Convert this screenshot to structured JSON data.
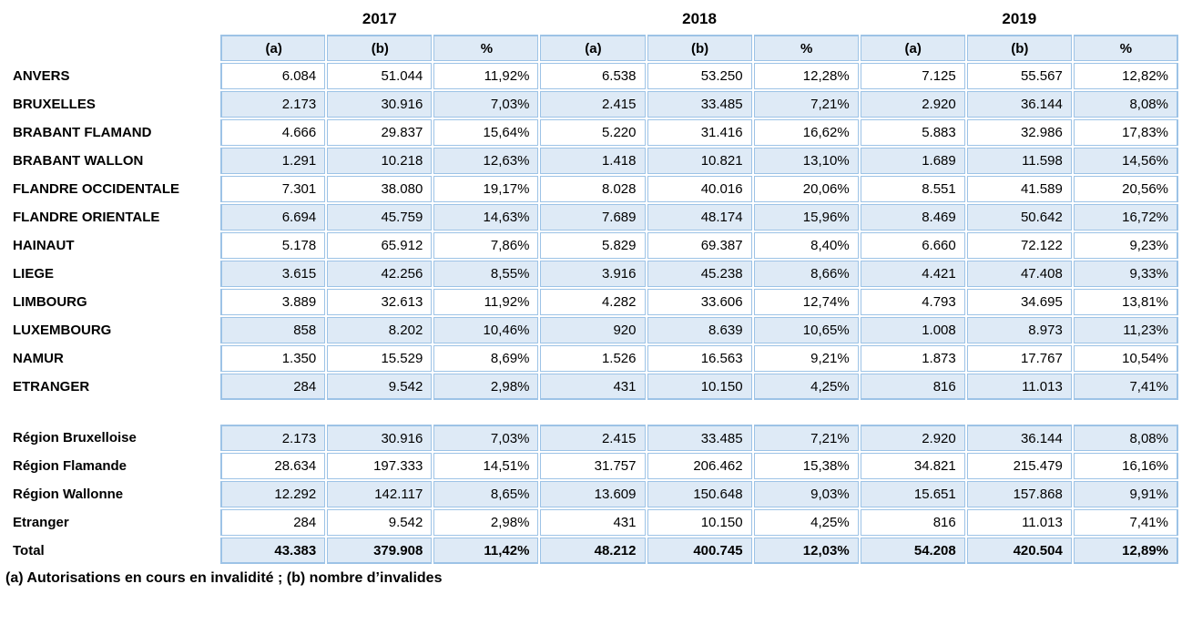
{
  "colors": {
    "cell_border": "#9DC3E6",
    "row_fill": "#DEEAF6",
    "text": "#000000",
    "background": "#FFFFFF"
  },
  "table": {
    "years": [
      "2017",
      "2018",
      "2019"
    ],
    "sub_headers": [
      "(a)",
      "(b)",
      "%"
    ],
    "provinces": [
      {
        "label": "ANVERS",
        "values": [
          "6.084",
          "51.044",
          "11,92%",
          "6.538",
          "53.250",
          "12,28%",
          "7.125",
          "55.567",
          "12,82%"
        ]
      },
      {
        "label": "BRUXELLES",
        "values": [
          "2.173",
          "30.916",
          "7,03%",
          "2.415",
          "33.485",
          "7,21%",
          "2.920",
          "36.144",
          "8,08%"
        ]
      },
      {
        "label": "BRABANT FLAMAND",
        "values": [
          "4.666",
          "29.837",
          "15,64%",
          "5.220",
          "31.416",
          "16,62%",
          "5.883",
          "32.986",
          "17,83%"
        ]
      },
      {
        "label": "BRABANT WALLON",
        "values": [
          "1.291",
          "10.218",
          "12,63%",
          "1.418",
          "10.821",
          "13,10%",
          "1.689",
          "11.598",
          "14,56%"
        ]
      },
      {
        "label": "FLANDRE OCCIDENTALE",
        "values": [
          "7.301",
          "38.080",
          "19,17%",
          "8.028",
          "40.016",
          "20,06%",
          "8.551",
          "41.589",
          "20,56%"
        ]
      },
      {
        "label": "FLANDRE ORIENTALE",
        "values": [
          "6.694",
          "45.759",
          "14,63%",
          "7.689",
          "48.174",
          "15,96%",
          "8.469",
          "50.642",
          "16,72%"
        ]
      },
      {
        "label": "HAINAUT",
        "values": [
          "5.178",
          "65.912",
          "7,86%",
          "5.829",
          "69.387",
          "8,40%",
          "6.660",
          "72.122",
          "9,23%"
        ]
      },
      {
        "label": "LIEGE",
        "values": [
          "3.615",
          "42.256",
          "8,55%",
          "3.916",
          "45.238",
          "8,66%",
          "4.421",
          "47.408",
          "9,33%"
        ]
      },
      {
        "label": "LIMBOURG",
        "values": [
          "3.889",
          "32.613",
          "11,92%",
          "4.282",
          "33.606",
          "12,74%",
          "4.793",
          "34.695",
          "13,81%"
        ]
      },
      {
        "label": "LUXEMBOURG",
        "values": [
          "858",
          "8.202",
          "10,46%",
          "920",
          "8.639",
          "10,65%",
          "1.008",
          "8.973",
          "11,23%"
        ]
      },
      {
        "label": "NAMUR",
        "values": [
          "1.350",
          "15.529",
          "8,69%",
          "1.526",
          "16.563",
          "9,21%",
          "1.873",
          "17.767",
          "10,54%"
        ]
      },
      {
        "label": "ETRANGER",
        "values": [
          "284",
          "9.542",
          "2,98%",
          "431",
          "10.150",
          "4,25%",
          "816",
          "11.013",
          "7,41%"
        ]
      }
    ],
    "regions": [
      {
        "label": "Région Bruxelloise",
        "values": [
          "2.173",
          "30.916",
          "7,03%",
          "2.415",
          "33.485",
          "7,21%",
          "2.920",
          "36.144",
          "8,08%"
        ],
        "bold": false
      },
      {
        "label": "Région Flamande",
        "values": [
          "28.634",
          "197.333",
          "14,51%",
          "31.757",
          "206.462",
          "15,38%",
          "34.821",
          "215.479",
          "16,16%"
        ],
        "bold": false
      },
      {
        "label": "Région Wallonne",
        "values": [
          "12.292",
          "142.117",
          "8,65%",
          "13.609",
          "150.648",
          "9,03%",
          "15.651",
          "157.868",
          "9,91%"
        ],
        "bold": false
      },
      {
        "label": "Etranger",
        "values": [
          "284",
          "9.542",
          "2,98%",
          "431",
          "10.150",
          "4,25%",
          "816",
          "11.013",
          "7,41%"
        ],
        "bold": false
      },
      {
        "label": "Total",
        "values": [
          "43.383",
          "379.908",
          "11,42%",
          "48.212",
          "400.745",
          "12,03%",
          "54.208",
          "420.504",
          "12,89%"
        ],
        "bold": true
      }
    ]
  },
  "footnote": "(a) Autorisations en cours en invalidité ; (b) nombre d’invalides"
}
